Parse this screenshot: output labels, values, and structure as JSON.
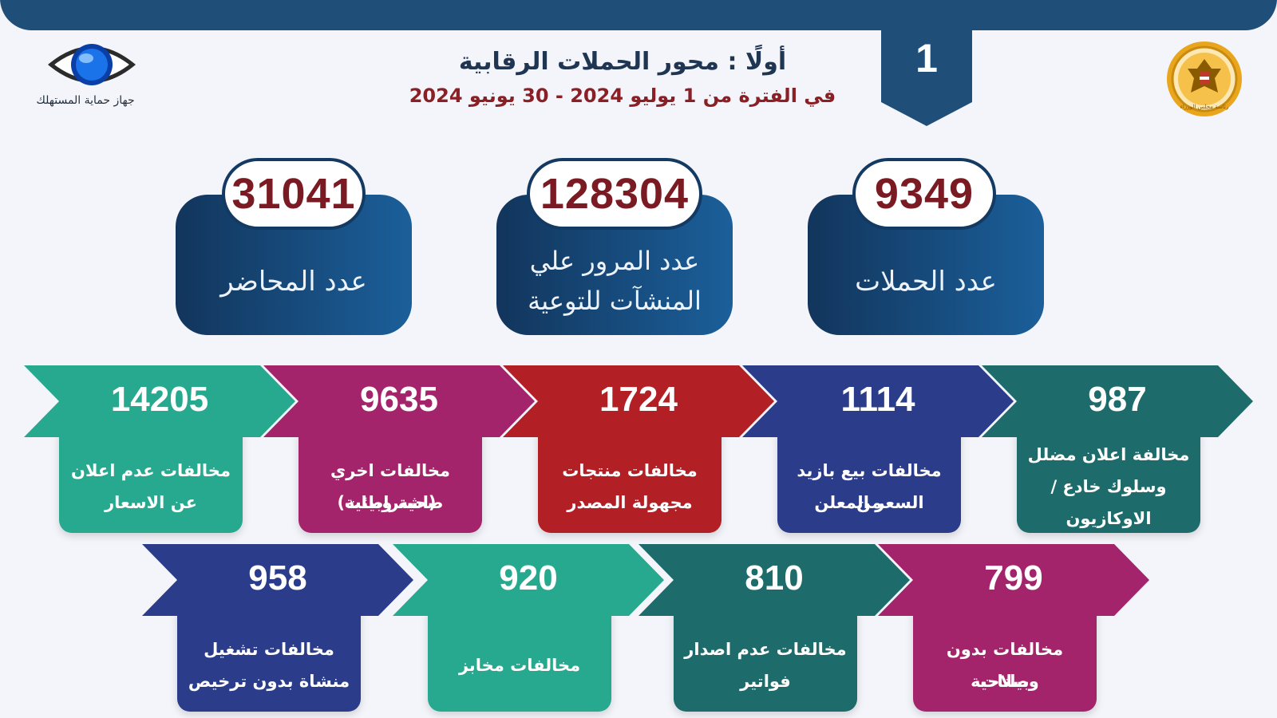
{
  "header": {
    "badge_number": "1",
    "title": "أولًا : محور الحملات  الرقابية",
    "subtitle": "في الفترة من 1 يوليو 2024 - 30 يونيو 2024",
    "logo_left_text": "جهاز حماية المستهلك",
    "seal_text": "رئاسة مجلس الوزراء"
  },
  "stats": [
    {
      "value": "31041",
      "label": "عدد المحاضر"
    },
    {
      "value": "128304",
      "label_line1": "عدد المرور علي",
      "label_line2": "المنشآت للتوعية"
    },
    {
      "value": "9349",
      "label": "عدد الحملات"
    }
  ],
  "violations_row1": [
    {
      "value": "14205",
      "line1": "مخالفات   عدم اعلان",
      "line2": "عن الاسعار",
      "color": "#27a98f"
    },
    {
      "value": "9635",
      "line1": "مخالفات اخري (اشتراطات",
      "line2": "صحية وبيئية)",
      "color": "#a3246b"
    },
    {
      "value": "1724",
      "line1": "مخالفات منتجات",
      "line2": "مجهولة المصدر",
      "color": "#b21f24"
    },
    {
      "value": "1114",
      "line1": "مخالفات بيع بازيد من",
      "line2": "السعر المعلن",
      "color": "#2a3c8a"
    },
    {
      "value": "987",
      "line1": "مخالفة اعلان مضلل",
      "line2": "وسلوك خادع /",
      "line3": "الاوكازيون",
      "color": "#1d6b6b"
    }
  ],
  "violations_row2": [
    {
      "value": "958",
      "line1": "مخالفات تشغيل",
      "line2": "منشاة بدون ترخيص",
      "color": "#2a3c8a"
    },
    {
      "value": "920",
      "line1": "مخالفات مخابز",
      "line2": "",
      "color": "#27a98f"
    },
    {
      "value": "810",
      "line1": "مخالفات عدم اصدار",
      "line2": "فواتير",
      "color": "#1d6b6b"
    },
    {
      "value": "799",
      "line1": "مخالفات بدون بيانات",
      "line2": "وصلاحية",
      "color": "#a3246b"
    }
  ],
  "colors": {
    "navy": "#1f4e79",
    "card_dark": "#12355c",
    "value_red": "#7a1a22"
  }
}
